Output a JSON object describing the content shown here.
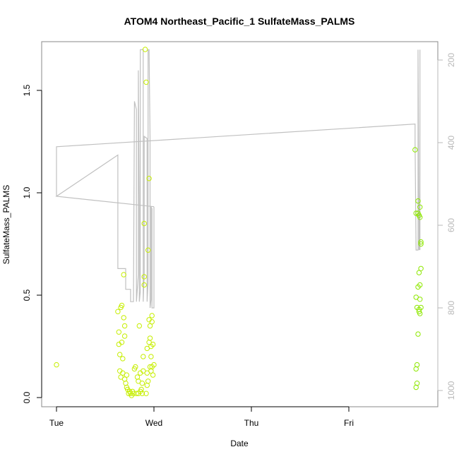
{
  "chart_data": {
    "type": "scatter",
    "title": "ATOM4 Northeast_Pacific_1 SulfateMass_PALMS",
    "xlabel": "Date",
    "ylabel": "SulfateMass_PALMS",
    "xlim": [
      0.0,
      3.98
    ],
    "ylim": [
      -0.04,
      1.77
    ],
    "x_ticks": [
      {
        "value": 0,
        "label": "Tue"
      },
      {
        "value": 1,
        "label": "Wed"
      },
      {
        "value": 2,
        "label": "Thu"
      },
      {
        "value": 3,
        "label": "Fri"
      }
    ],
    "y_ticks": [
      {
        "value": 0.0,
        "label": "0.0"
      },
      {
        "value": 0.5,
        "label": "0.5"
      },
      {
        "value": 1.0,
        "label": "1.0"
      },
      {
        "value": 1.5,
        "label": "1.5"
      }
    ],
    "y2_ticks": [
      {
        "value": 200,
        "label": "200"
      },
      {
        "value": 400,
        "label": "400"
      },
      {
        "value": 600,
        "label": "600"
      },
      {
        "value": 800,
        "label": "800"
      },
      {
        "value": 1000,
        "label": "1000"
      }
    ],
    "y2lim": [
      1030,
      175
    ],
    "colors": {
      "points": "#c6ee00",
      "points_late": "#8ee800",
      "pressure_line": "#c0c0c0"
    },
    "series": [
      {
        "role": "points",
        "points": [
          [
            0.0,
            0.16
          ],
          [
            0.63,
            0.42
          ],
          [
            0.64,
            0.32
          ],
          [
            0.64,
            0.26
          ],
          [
            0.65,
            0.21
          ],
          [
            0.65,
            0.13
          ],
          [
            0.66,
            0.1
          ],
          [
            0.66,
            0.44
          ],
          [
            0.67,
            0.45
          ],
          [
            0.67,
            0.27
          ],
          [
            0.68,
            0.19
          ],
          [
            0.68,
            0.12
          ],
          [
            0.69,
            0.6
          ],
          [
            0.69,
            0.39
          ],
          [
            0.7,
            0.35
          ],
          [
            0.7,
            0.3
          ],
          [
            0.7,
            0.09
          ],
          [
            0.71,
            0.07
          ],
          [
            0.72,
            0.05
          ],
          [
            0.72,
            0.11
          ],
          [
            0.73,
            0.04
          ],
          [
            0.74,
            0.02
          ],
          [
            0.75,
            0.03
          ],
          [
            0.76,
            0.02
          ],
          [
            0.77,
            0.01
          ],
          [
            0.78,
            0.03
          ],
          [
            0.79,
            0.02
          ],
          [
            0.8,
            0.14
          ],
          [
            0.81,
            0.15
          ],
          [
            0.82,
            0.02
          ],
          [
            0.83,
            0.1
          ],
          [
            0.84,
            0.08
          ],
          [
            0.84,
            0.02
          ],
          [
            0.85,
            0.35
          ],
          [
            0.86,
            0.12
          ],
          [
            0.86,
            0.03
          ],
          [
            0.87,
            0.04
          ],
          [
            0.88,
            0.02
          ],
          [
            0.88,
            0.07
          ],
          [
            0.89,
            0.13
          ],
          [
            0.89,
            0.2
          ],
          [
            0.9,
            0.55
          ],
          [
            0.9,
            0.59
          ],
          [
            0.9,
            0.85
          ],
          [
            0.91,
            1.7
          ],
          [
            0.92,
            1.54
          ],
          [
            0.92,
            0.02
          ],
          [
            0.93,
            0.24
          ],
          [
            0.93,
            0.12
          ],
          [
            0.94,
            0.08
          ],
          [
            0.94,
            0.72
          ],
          [
            0.95,
            1.07
          ],
          [
            0.95,
            0.27
          ],
          [
            0.96,
            0.15
          ],
          [
            0.96,
            0.35
          ],
          [
            0.96,
            0.29
          ],
          [
            0.97,
            0.25
          ],
          [
            0.97,
            0.2
          ],
          [
            0.97,
            0.13
          ],
          [
            0.98,
            0.37
          ],
          [
            0.98,
            0.4
          ],
          [
            0.98,
            0.15
          ],
          [
            0.99,
            0.11
          ],
          [
            0.99,
            0.26
          ],
          [
            1.0,
            0.16
          ],
          [
            0.95,
            0.38
          ],
          [
            0.93,
            0.06
          ]
        ]
      },
      {
        "role": "points_late",
        "points": [
          [
            3.68,
            1.21
          ],
          [
            3.69,
            0.9
          ],
          [
            3.69,
            0.49
          ],
          [
            3.7,
            0.44
          ],
          [
            3.7,
            0.16
          ],
          [
            3.69,
            0.14
          ],
          [
            3.7,
            0.07
          ],
          [
            3.69,
            0.05
          ],
          [
            3.71,
            0.96
          ],
          [
            3.71,
            0.9
          ],
          [
            3.72,
            0.89
          ],
          [
            3.72,
            0.61
          ],
          [
            3.71,
            0.54
          ],
          [
            3.72,
            0.43
          ],
          [
            3.72,
            0.42
          ],
          [
            3.71,
            0.31
          ],
          [
            3.73,
            0.93
          ],
          [
            3.73,
            0.88
          ],
          [
            3.73,
            0.55
          ],
          [
            3.73,
            0.48
          ],
          [
            3.74,
            0.76
          ],
          [
            3.74,
            0.75
          ],
          [
            3.74,
            0.63
          ],
          [
            3.74,
            0.44
          ],
          [
            3.73,
            0.41
          ]
        ]
      }
    ],
    "pressure_line": [
      [
        0.0,
        530
      ],
      [
        0.0,
        410
      ],
      [
        3.68,
        355
      ],
      [
        3.68,
        400
      ],
      [
        3.69,
        660
      ],
      [
        3.71,
        660
      ],
      [
        3.71,
        175
      ],
      [
        3.72,
        600
      ],
      [
        3.72,
        660
      ],
      [
        3.73,
        520
      ],
      [
        3.73,
        660
      ],
      [
        3.73,
        175
      ]
    ],
    "pressure_profiles": [
      [
        1.0,
        555
      ],
      [
        0.0,
        530
      ],
      [
        0.63,
        430
      ],
      [
        0.63,
        600
      ],
      [
        0.63,
        705
      ],
      [
        0.71,
        705
      ],
      [
        0.71,
        755
      ],
      [
        0.76,
        755
      ],
      [
        0.76,
        785
      ],
      [
        0.79,
        785
      ],
      [
        0.8,
        300
      ],
      [
        0.82,
        320
      ],
      [
        0.82,
        785
      ],
      [
        0.84,
        720
      ],
      [
        0.84,
        225
      ],
      [
        0.85,
        560
      ],
      [
        0.85,
        785
      ],
      [
        0.86,
        760
      ],
      [
        0.86,
        175
      ],
      [
        0.89,
        175
      ],
      [
        0.89,
        785
      ],
      [
        0.9,
        720
      ],
      [
        0.9,
        385
      ],
      [
        0.93,
        390
      ],
      [
        0.93,
        785
      ],
      [
        0.94,
        740
      ],
      [
        0.94,
        175
      ],
      [
        0.95,
        175
      ],
      [
        0.96,
        390
      ],
      [
        0.96,
        800
      ],
      [
        0.97,
        780
      ],
      [
        0.97,
        555
      ],
      [
        0.98,
        560
      ],
      [
        0.98,
        800
      ],
      [
        1.0,
        800
      ],
      [
        1.0,
        555
      ]
    ]
  }
}
